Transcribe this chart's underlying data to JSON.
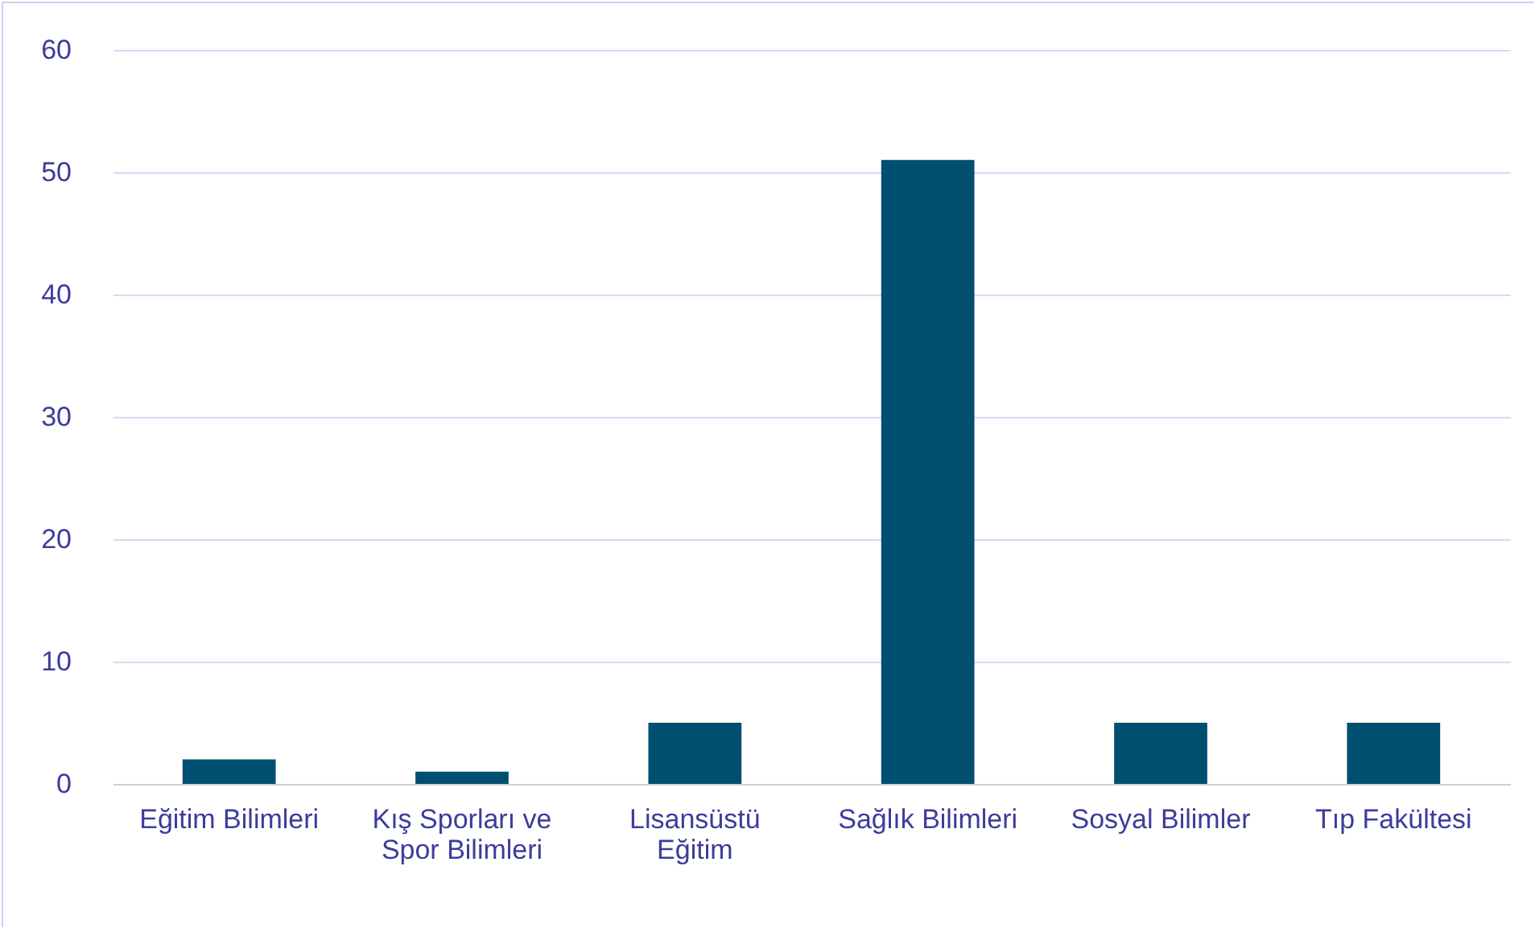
{
  "chart_data": {
    "type": "bar",
    "categories": [
      "Eğitim Bilimleri",
      "Kış Sporları ve Spor Bilimleri",
      "Lisansüstü Eğitim",
      "Sağlık Bilimleri",
      "Sosyal Bilimler",
      "Tıp Fakültesi"
    ],
    "values": [
      2,
      1,
      5,
      51,
      5,
      5
    ],
    "color": "#004f71",
    "ylim": [
      0,
      60
    ],
    "yticks": [
      0,
      10,
      20,
      30,
      40,
      50,
      60
    ],
    "grid": "y"
  }
}
